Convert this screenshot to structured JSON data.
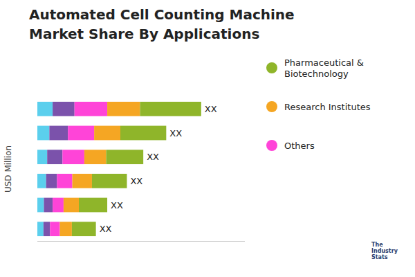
{
  "chart_data": {
    "type": "bar",
    "orientation": "horizontal",
    "stacked": true,
    "title": "Automated Cell Counting Machine",
    "subtitle": "Market Share By Applications",
    "y_label": "USD Million",
    "categories": [
      null,
      null,
      null,
      null,
      null,
      null
    ],
    "series": [
      {
        "color": "#5BCFED",
        "values": [
          0.7,
          0.55,
          0.45,
          0.4,
          0.3,
          0.28
        ]
      },
      {
        "color": "#7B52AB",
        "values": [
          1.0,
          0.85,
          0.7,
          0.5,
          0.4,
          0.3
        ]
      },
      {
        "name": "Others",
        "color": "#FF44D8",
        "values": [
          1.5,
          1.2,
          1.0,
          0.7,
          0.5,
          0.45
        ]
      },
      {
        "name": "Research Institutes",
        "color": "#F5A623",
        "values": [
          1.5,
          1.2,
          1.0,
          0.9,
          0.7,
          0.55
        ]
      },
      {
        "name": "Pharmaceutical &\nBiotechnology",
        "color": "#8FB52A",
        "values": [
          2.8,
          2.1,
          1.7,
          1.6,
          1.3,
          1.1
        ]
      }
    ],
    "annotations": [
      "XX",
      "XX",
      "XX",
      "XX",
      "XX",
      "XX"
    ],
    "credit": "The\nIndustry\nStats",
    "xlim": [
      0,
      9.5
    ],
    "tick_labels": false,
    "grid": false,
    "legend": "right"
  }
}
